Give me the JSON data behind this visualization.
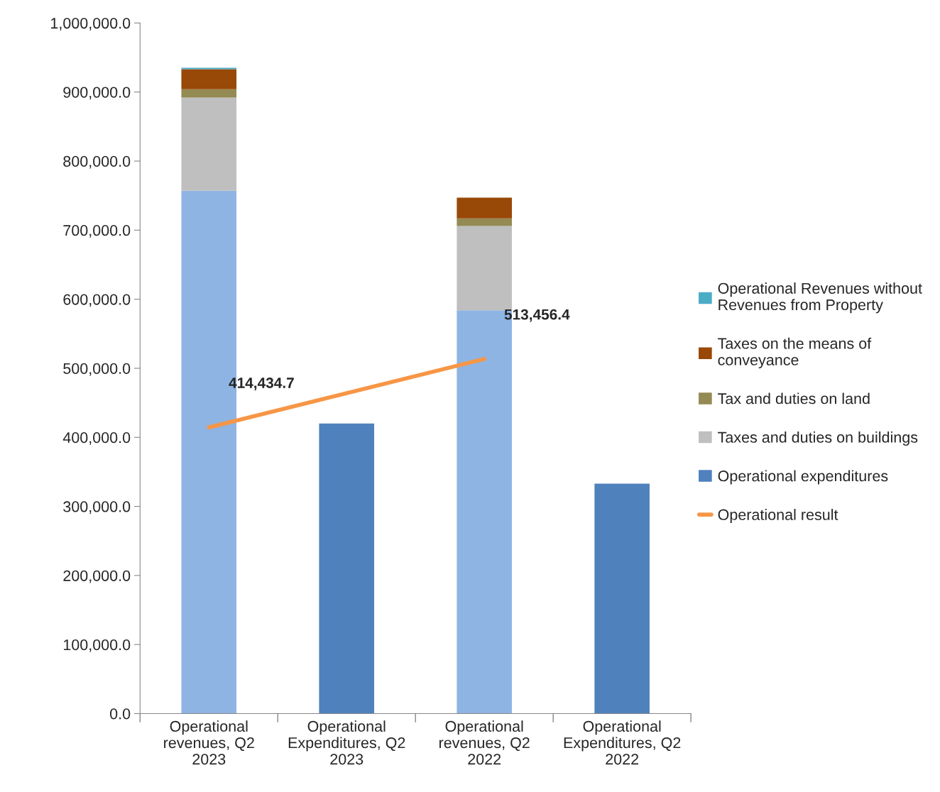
{
  "chart_data": {
    "type": "bar",
    "stacked": true,
    "categories": [
      "Operational\nrevenues, Q2\n2023",
      "Operational\nExpenditures, Q2\n2023",
      "Operational\nrevenues, Q2\n2022",
      "Operational\nExpenditures, Q2\n2022"
    ],
    "series": [
      {
        "name": "Operational expenditures",
        "color": "#4f81bd",
        "values": [
          null,
          420000,
          null,
          333000
        ]
      },
      {
        "color": "#8eb4e3",
        "values": [
          757000,
          null,
          584000,
          null
        ]
      },
      {
        "name": "Taxes and duties on buildings",
        "color": "#bfbfbf",
        "values": [
          135000,
          null,
          122000,
          null
        ]
      },
      {
        "name": "Tax and duties on land",
        "color": "#948a54",
        "values": [
          12000,
          null,
          11000,
          null
        ]
      },
      {
        "name": "Taxes on the means of\nconveyance",
        "color": "#984807",
        "values": [
          29000,
          null,
          30000,
          null
        ]
      },
      {
        "name": "Operational Revenues without\nRevenues from Property",
        "color": "#4bacc6",
        "values": [
          2000,
          null,
          0,
          null
        ]
      },
      {
        "name": "Operational result",
        "type": "line",
        "color": "#f79646",
        "values": [
          414434.7,
          null,
          513456.4,
          null
        ],
        "value_labels": [
          "414,434.7",
          null,
          "513,456.4",
          null
        ]
      }
    ],
    "ylim": [
      0,
      1000000
    ],
    "yticks": [
      {
        "value": 0,
        "label": "0.0"
      },
      {
        "value": 100000,
        "label": "100,000.0"
      },
      {
        "value": 200000,
        "label": "200,000.0"
      },
      {
        "value": 300000,
        "label": "300,000.0"
      },
      {
        "value": 400000,
        "label": "400,000.0"
      },
      {
        "value": 500000,
        "label": "500,000.0"
      },
      {
        "value": 600000,
        "label": "600,000.0"
      },
      {
        "value": 700000,
        "label": "700,000.0"
      },
      {
        "value": 800000,
        "label": "800,000.0"
      },
      {
        "value": 900000,
        "label": "900,000.0"
      },
      {
        "value": 1000000,
        "label": "1,000,000.0"
      }
    ],
    "grid": false,
    "legend": "right"
  }
}
